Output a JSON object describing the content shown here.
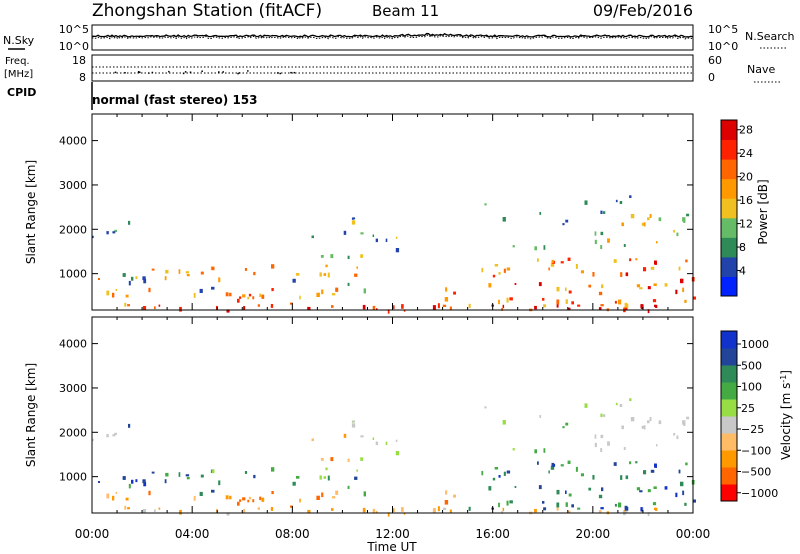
{
  "header": {
    "station": "Zhongshan Station (fitACF)",
    "beam": "Beam 11",
    "date": "09/Feb/2016"
  },
  "mode_label": "normal (fast stereo) 153",
  "sky_panel": {
    "left_label": "N.Sky",
    "left_ticks": [
      "10^5",
      "10^0"
    ],
    "right_label": "N.Search",
    "right_ticks": [
      "10^5",
      "10^0"
    ]
  },
  "freq_panel": {
    "left_label_1": "Freq.",
    "left_label_2": "[MHz]",
    "left_ticks": [
      "18",
      "8"
    ],
    "right_label": "Nave",
    "right_ticks": [
      "60",
      "0"
    ],
    "cpid_label": "CPID"
  },
  "colors": {
    "power_scale": [
      "#0022ff",
      "#2244aa",
      "#2e8b57",
      "#66bb66",
      "#f0c020",
      "#ff9900",
      "#ff6600",
      "#ff2200",
      "#dd0000"
    ],
    "velocity_scale": [
      "#ff0000",
      "#ff6600",
      "#ff9900",
      "#ffbb66",
      "#c8c8c8",
      "#99dd44",
      "#44aa44",
      "#2e8b57",
      "#224499",
      "#1133cc"
    ]
  },
  "chart_data": [
    {
      "type": "heatmap",
      "name": "Power",
      "ylabel": "Slant Range [km]",
      "xlabel": "Time UT",
      "x_ticks": [
        "00:00",
        "04:00",
        "08:00",
        "12:00",
        "16:00",
        "20:00",
        "00:00"
      ],
      "y_ticks": [
        "1000",
        "2000",
        "3000",
        "4000"
      ],
      "xlim_hours": [
        0,
        24
      ],
      "ylim_km": [
        180,
        4600
      ],
      "colorbar": {
        "label": "Power [dB]",
        "ticks": [
          "4",
          "8",
          "12",
          "16",
          "20",
          "24",
          "28"
        ],
        "range": [
          0,
          30
        ]
      }
    },
    {
      "type": "heatmap",
      "name": "Velocity",
      "ylabel": "Slant Range [km]",
      "xlabel": "Time UT",
      "x_ticks": [
        "00:00",
        "04:00",
        "08:00",
        "12:00",
        "16:00",
        "20:00",
        "00:00"
      ],
      "y_ticks": [
        "1000",
        "2000",
        "3000",
        "4000"
      ],
      "xlim_hours": [
        0,
        24
      ],
      "ylim_km": [
        180,
        4600
      ],
      "colorbar": {
        "label": "Velocity [m s",
        "label_sup": "-1",
        "label_end": "]",
        "ticks": [
          "1000",
          "500",
          "100",
          "25",
          "−25",
          "−100",
          "−500",
          "−1000"
        ]
      }
    }
  ],
  "x_axis": {
    "ticks": [
      "00:00",
      "04:00",
      "08:00",
      "12:00",
      "16:00",
      "20:00",
      "00:00"
    ],
    "label": "Time UT"
  }
}
